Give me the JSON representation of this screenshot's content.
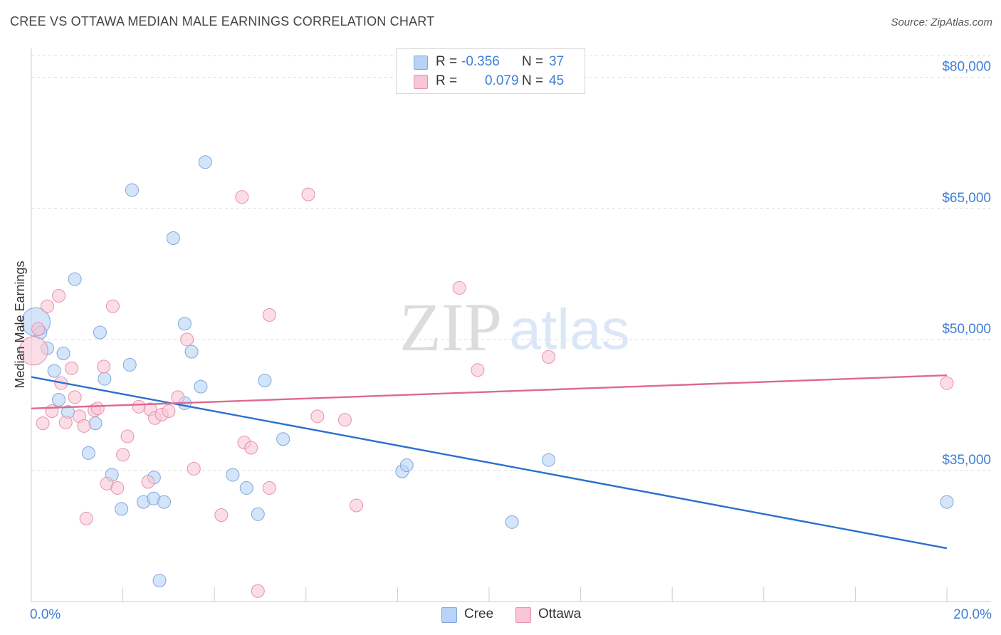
{
  "title": "CREE VS OTTAWA MEDIAN MALE EARNINGS CORRELATION CHART",
  "source": "Source: ZipAtlas.com",
  "watermark": {
    "zip": "ZIP",
    "atlas": "atlas"
  },
  "legend": {
    "r_label": "R =",
    "n_label": "N =",
    "rows": [
      {
        "series": "Cree",
        "r": "-0.356",
        "n": "37"
      },
      {
        "series": "Ottawa",
        "r": "0.079",
        "n": "45"
      }
    ]
  },
  "colors": {
    "cree_fill": "#b8d3f5",
    "cree_stroke": "#7ea7dc",
    "cree_line": "#2d6fd0",
    "ottawa_fill": "#f8c6d6",
    "ottawa_stroke": "#e890ad",
    "ottawa_line": "#e06890",
    "axis_label": "#3d7fd6",
    "grid": "#dddddd"
  },
  "chart_data": {
    "type": "scatter",
    "title": "CREE VS OTTAWA MEDIAN MALE EARNINGS CORRELATION CHART",
    "xlabel": "",
    "ylabel": "Median Male Earnings",
    "xlim": [
      0,
      20
    ],
    "ylim": [
      20000,
      82500
    ],
    "x_tick_labels": [
      "0.0%",
      "20.0%"
    ],
    "y_ticks": [
      35000,
      50000,
      65000,
      80000
    ],
    "y_tick_labels": [
      "$35,000",
      "$50,000",
      "$65,000",
      "$80,000"
    ],
    "series": [
      {
        "name": "Cree",
        "trend": {
          "x0": 0,
          "y0": 45700,
          "x1": 20,
          "y1": 26100
        },
        "points": [
          [
            0.1,
            52000,
            "large"
          ],
          [
            0.2,
            50800
          ],
          [
            0.35,
            49000
          ],
          [
            0.5,
            46400
          ],
          [
            0.7,
            48400
          ],
          [
            0.95,
            56900
          ],
          [
            0.8,
            41700
          ],
          [
            1.25,
            37000
          ],
          [
            1.4,
            40400
          ],
          [
            1.6,
            45500
          ],
          [
            1.5,
            50800
          ],
          [
            2.15,
            47100
          ],
          [
            2.2,
            67100
          ],
          [
            1.76,
            34500
          ],
          [
            1.97,
            30600
          ],
          [
            2.45,
            31400
          ],
          [
            2.67,
            31800
          ],
          [
            2.68,
            34200
          ],
          [
            2.9,
            31400
          ],
          [
            2.8,
            22400
          ],
          [
            3.1,
            61600
          ],
          [
            3.35,
            51800
          ],
          [
            3.5,
            48600
          ],
          [
            3.7,
            44600
          ],
          [
            3.35,
            42700
          ],
          [
            3.8,
            70300
          ],
          [
            4.4,
            34500
          ],
          [
            4.7,
            33000
          ],
          [
            4.95,
            30000
          ],
          [
            5.1,
            45300
          ],
          [
            5.5,
            38600
          ],
          [
            8.1,
            34900
          ],
          [
            8.2,
            35600
          ],
          [
            10.5,
            29100
          ],
          [
            11.3,
            36200
          ],
          [
            20.0,
            31400
          ],
          [
            0.6,
            43100
          ]
        ]
      },
      {
        "name": "Ottawa",
        "trend": {
          "x0": 0,
          "y0": 42100,
          "x1": 20,
          "y1": 45900
        },
        "points": [
          [
            0.05,
            48700,
            "large"
          ],
          [
            0.15,
            51200
          ],
          [
            0.25,
            40400
          ],
          [
            0.35,
            53800
          ],
          [
            0.45,
            41800
          ],
          [
            0.6,
            55000
          ],
          [
            0.65,
            45000
          ],
          [
            0.75,
            40500
          ],
          [
            0.88,
            46700
          ],
          [
            0.95,
            43400
          ],
          [
            1.05,
            41200
          ],
          [
            1.15,
            40100
          ],
          [
            1.2,
            29500
          ],
          [
            1.38,
            41900
          ],
          [
            1.45,
            42100
          ],
          [
            1.58,
            46900
          ],
          [
            1.65,
            33500
          ],
          [
            1.78,
            53800
          ],
          [
            1.88,
            33000
          ],
          [
            2.0,
            36800
          ],
          [
            2.1,
            38900
          ],
          [
            2.35,
            42300
          ],
          [
            2.55,
            33700
          ],
          [
            2.6,
            42000
          ],
          [
            2.7,
            41000
          ],
          [
            2.85,
            41400
          ],
          [
            3.0,
            41800
          ],
          [
            3.2,
            43400
          ],
          [
            3.4,
            50000
          ],
          [
            3.55,
            35200
          ],
          [
            4.15,
            29900
          ],
          [
            4.6,
            66300
          ],
          [
            4.65,
            38200
          ],
          [
            4.8,
            37600
          ],
          [
            4.95,
            21200
          ],
          [
            5.2,
            33000
          ],
          [
            5.2,
            52800
          ],
          [
            6.05,
            66600
          ],
          [
            6.25,
            41200
          ],
          [
            6.85,
            40800
          ],
          [
            7.1,
            31000
          ],
          [
            9.35,
            55900
          ],
          [
            9.75,
            46500
          ],
          [
            11.3,
            48000
          ],
          [
            20.0,
            45000
          ]
        ]
      }
    ]
  }
}
